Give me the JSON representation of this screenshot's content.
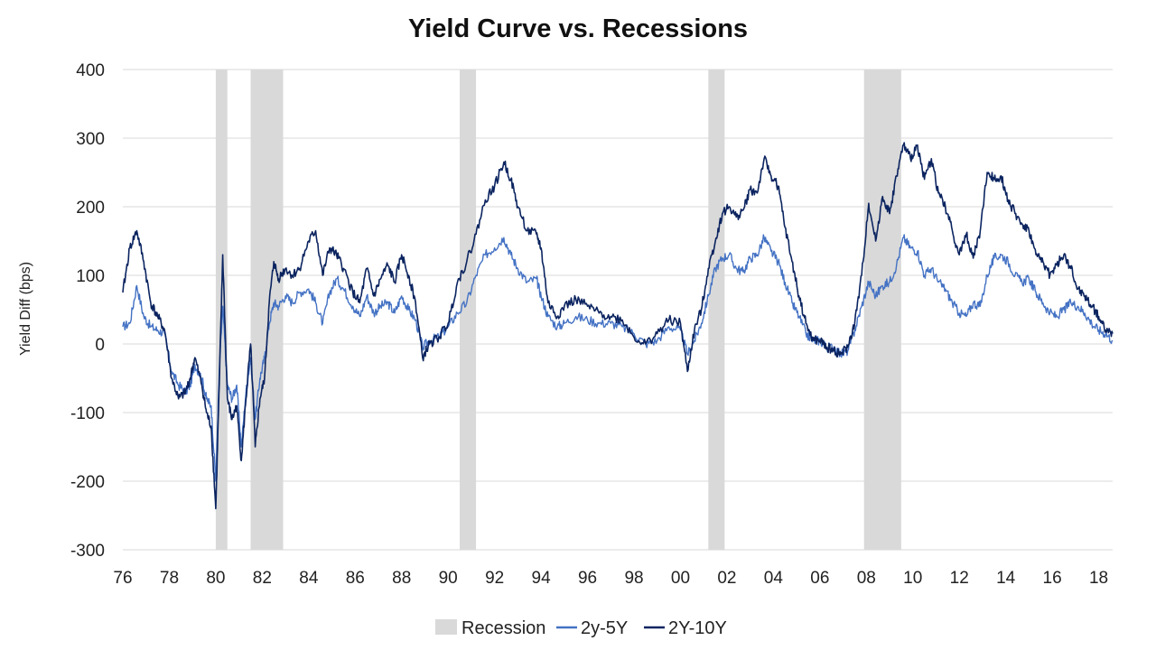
{
  "chart_data": {
    "type": "line",
    "title": "Yield Curve vs. Recessions",
    "ylabel": "Yield Diff (bps)",
    "xlabel": "",
    "xlim": [
      1976,
      2018.6
    ],
    "ylim": [
      -300,
      400
    ],
    "y_ticks": [
      400,
      300,
      200,
      100,
      0,
      -100,
      -200,
      -300
    ],
    "x_ticks": [
      {
        "year": 1976,
        "label": "76"
      },
      {
        "year": 1978,
        "label": "78"
      },
      {
        "year": 1980,
        "label": "80"
      },
      {
        "year": 1982,
        "label": "82"
      },
      {
        "year": 1984,
        "label": "84"
      },
      {
        "year": 1986,
        "label": "86"
      },
      {
        "year": 1988,
        "label": "88"
      },
      {
        "year": 1990,
        "label": "90"
      },
      {
        "year": 1992,
        "label": "92"
      },
      {
        "year": 1994,
        "label": "94"
      },
      {
        "year": 1996,
        "label": "96"
      },
      {
        "year": 1998,
        "label": "98"
      },
      {
        "year": 2000,
        "label": "00"
      },
      {
        "year": 2002,
        "label": "02"
      },
      {
        "year": 2004,
        "label": "04"
      },
      {
        "year": 2006,
        "label": "06"
      },
      {
        "year": 2008,
        "label": "08"
      },
      {
        "year": 2010,
        "label": "10"
      },
      {
        "year": 2012,
        "label": "12"
      },
      {
        "year": 2014,
        "label": "14"
      },
      {
        "year": 2016,
        "label": "16"
      },
      {
        "year": 2018,
        "label": "18"
      }
    ],
    "grid": "horizontal",
    "legend_position": "bottom",
    "recessions": [
      [
        1980.0,
        1980.5
      ],
      [
        1981.5,
        1982.9
      ],
      [
        1990.5,
        1991.2
      ],
      [
        2001.2,
        2001.9
      ],
      [
        2007.9,
        2009.5
      ]
    ],
    "legend": [
      {
        "label": "Recession",
        "kind": "recession"
      },
      {
        "label": "2y-5Y",
        "kind": "series",
        "index": 0
      },
      {
        "label": "2Y-10Y",
        "kind": "series",
        "index": 1
      }
    ],
    "colors": {
      "recession": "#d9d9d9",
      "s2y5y": "#4472c4",
      "s2y10y": "#0b2460",
      "grid": "#d9d9d9"
    },
    "series": [
      {
        "name": "2y-5Y",
        "color": "#4472c4",
        "x": [
          1976.0,
          1976.3,
          1976.6,
          1976.9,
          1977.2,
          1977.5,
          1977.8,
          1978.1,
          1978.4,
          1978.7,
          1978.9,
          1979.1,
          1979.4,
          1979.6,
          1979.8,
          1980.0,
          1980.15,
          1980.3,
          1980.5,
          1980.7,
          1980.9,
          1981.1,
          1981.3,
          1981.5,
          1981.7,
          1981.9,
          1982.1,
          1982.3,
          1982.5,
          1982.7,
          1983.0,
          1983.3,
          1983.6,
          1984.0,
          1984.3,
          1984.6,
          1984.9,
          1985.2,
          1985.5,
          1985.9,
          1986.2,
          1986.5,
          1986.8,
          1987.1,
          1987.4,
          1987.7,
          1988.0,
          1988.3,
          1988.6,
          1988.9,
          1989.2,
          1989.6,
          1990.0,
          1990.4,
          1990.8,
          1991.2,
          1991.6,
          1992.0,
          1992.4,
          1992.7,
          1993.0,
          1993.4,
          1993.8,
          1994.0,
          1994.3,
          1994.7,
          1995.0,
          1995.5,
          1996.0,
          1996.5,
          1997.0,
          1997.5,
          1998.0,
          1998.5,
          1999.0,
          1999.5,
          2000.0,
          2000.3,
          2000.6,
          2000.9,
          2001.2,
          2001.5,
          2001.8,
          2002.1,
          2002.4,
          2002.7,
          2003.0,
          2003.3,
          2003.6,
          2003.9,
          2004.2,
          2004.5,
          2004.8,
          2005.1,
          2005.4,
          2005.7,
          2006.0,
          2006.3,
          2006.6,
          2006.9,
          2007.2,
          2007.5,
          2007.8,
          2008.1,
          2008.4,
          2008.7,
          2009.0,
          2009.3,
          2009.6,
          2009.9,
          2010.2,
          2010.5,
          2010.8,
          2011.1,
          2011.4,
          2011.7,
          2012.0,
          2012.3,
          2012.6,
          2012.9,
          2013.2,
          2013.5,
          2013.8,
          2014.1,
          2014.4,
          2014.7,
          2015.0,
          2015.3,
          2015.6,
          2015.9,
          2016.2,
          2016.5,
          2016.8,
          2017.1,
          2017.4,
          2017.7,
          2018.0,
          2018.3,
          2018.6
        ],
        "values": [
          25,
          30,
          85,
          40,
          25,
          20,
          15,
          -40,
          -60,
          -70,
          -60,
          -30,
          -50,
          -80,
          -90,
          -200,
          -40,
          55,
          -60,
          -80,
          -60,
          -150,
          -70,
          -20,
          -110,
          -50,
          -20,
          30,
          60,
          55,
          70,
          60,
          75,
          80,
          60,
          30,
          75,
          95,
          80,
          55,
          40,
          70,
          45,
          55,
          60,
          45,
          70,
          50,
          35,
          -5,
          5,
          10,
          25,
          45,
          60,
          100,
          130,
          140,
          155,
          130,
          110,
          90,
          95,
          70,
          40,
          25,
          30,
          40,
          35,
          30,
          30,
          25,
          15,
          0,
          5,
          25,
          20,
          -15,
          5,
          30,
          70,
          110,
          125,
          130,
          110,
          105,
          125,
          130,
          155,
          135,
          120,
          90,
          60,
          40,
          15,
          5,
          5,
          -5,
          -5,
          -15,
          -10,
          20,
          55,
          90,
          70,
          85,
          90,
          115,
          155,
          140,
          135,
          100,
          110,
          90,
          80,
          60,
          45,
          40,
          60,
          55,
          100,
          125,
          130,
          120,
          100,
          90,
          95,
          75,
          60,
          45,
          40,
          50,
          60,
          55,
          45,
          30,
          20,
          15,
          5
        ]
      },
      {
        "name": "2Y-10Y",
        "color": "#0b2460",
        "x": [
          1976.0,
          1976.3,
          1976.6,
          1976.9,
          1977.2,
          1977.5,
          1977.8,
          1978.1,
          1978.4,
          1978.7,
          1978.9,
          1979.1,
          1979.4,
          1979.6,
          1979.8,
          1980.0,
          1980.15,
          1980.3,
          1980.5,
          1980.7,
          1980.9,
          1981.1,
          1981.3,
          1981.5,
          1981.7,
          1981.9,
          1982.1,
          1982.3,
          1982.5,
          1982.7,
          1983.0,
          1983.3,
          1983.6,
          1984.0,
          1984.3,
          1984.6,
          1984.9,
          1985.2,
          1985.5,
          1985.9,
          1986.2,
          1986.5,
          1986.8,
          1987.1,
          1987.4,
          1987.7,
          1988.0,
          1988.3,
          1988.6,
          1988.9,
          1989.2,
          1989.6,
          1990.0,
          1990.4,
          1990.8,
          1991.2,
          1991.6,
          1992.0,
          1992.4,
          1992.7,
          1993.0,
          1993.4,
          1993.8,
          1994.0,
          1994.3,
          1994.7,
          1995.0,
          1995.5,
          1996.0,
          1996.5,
          1997.0,
          1997.5,
          1998.0,
          1998.5,
          1999.0,
          1999.5,
          2000.0,
          2000.3,
          2000.6,
          2000.9,
          2001.2,
          2001.5,
          2001.8,
          2002.1,
          2002.4,
          2002.7,
          2003.0,
          2003.3,
          2003.6,
          2003.9,
          2004.2,
          2004.5,
          2004.8,
          2005.1,
          2005.4,
          2005.7,
          2006.0,
          2006.3,
          2006.6,
          2006.9,
          2007.2,
          2007.5,
          2007.8,
          2008.1,
          2008.4,
          2008.7,
          2009.0,
          2009.3,
          2009.6,
          2009.9,
          2010.2,
          2010.5,
          2010.8,
          2011.1,
          2011.4,
          2011.7,
          2012.0,
          2012.3,
          2012.6,
          2012.9,
          2013.2,
          2013.5,
          2013.8,
          2014.1,
          2014.4,
          2014.7,
          2015.0,
          2015.3,
          2015.6,
          2015.9,
          2016.2,
          2016.5,
          2016.8,
          2017.1,
          2017.4,
          2017.7,
          2018.0,
          2018.3,
          2018.6
        ],
        "values": [
          75,
          140,
          165,
          120,
          60,
          40,
          20,
          -50,
          -80,
          -70,
          -50,
          -20,
          -60,
          -100,
          -120,
          -240,
          -60,
          130,
          -80,
          -110,
          -90,
          -170,
          -80,
          0,
          -150,
          -80,
          -50,
          60,
          120,
          95,
          110,
          100,
          110,
          150,
          165,
          100,
          140,
          130,
          110,
          75,
          60,
          110,
          70,
          95,
          115,
          90,
          130,
          100,
          60,
          -20,
          0,
          10,
          30,
          90,
          120,
          160,
          210,
          230,
          265,
          240,
          200,
          165,
          160,
          140,
          60,
          40,
          55,
          65,
          55,
          45,
          40,
          35,
          10,
          0,
          15,
          35,
          30,
          -40,
          20,
          50,
          110,
          150,
          190,
          200,
          185,
          195,
          225,
          220,
          270,
          245,
          230,
          170,
          120,
          70,
          30,
          5,
          5,
          -5,
          -10,
          -15,
          -5,
          30,
          100,
          205,
          150,
          215,
          190,
          245,
          290,
          270,
          290,
          240,
          270,
          220,
          200,
          165,
          130,
          160,
          125,
          165,
          250,
          240,
          245,
          210,
          190,
          175,
          165,
          130,
          120,
          100,
          115,
          130,
          110,
          80,
          70,
          55,
          40,
          20,
          15
        ]
      }
    ]
  }
}
